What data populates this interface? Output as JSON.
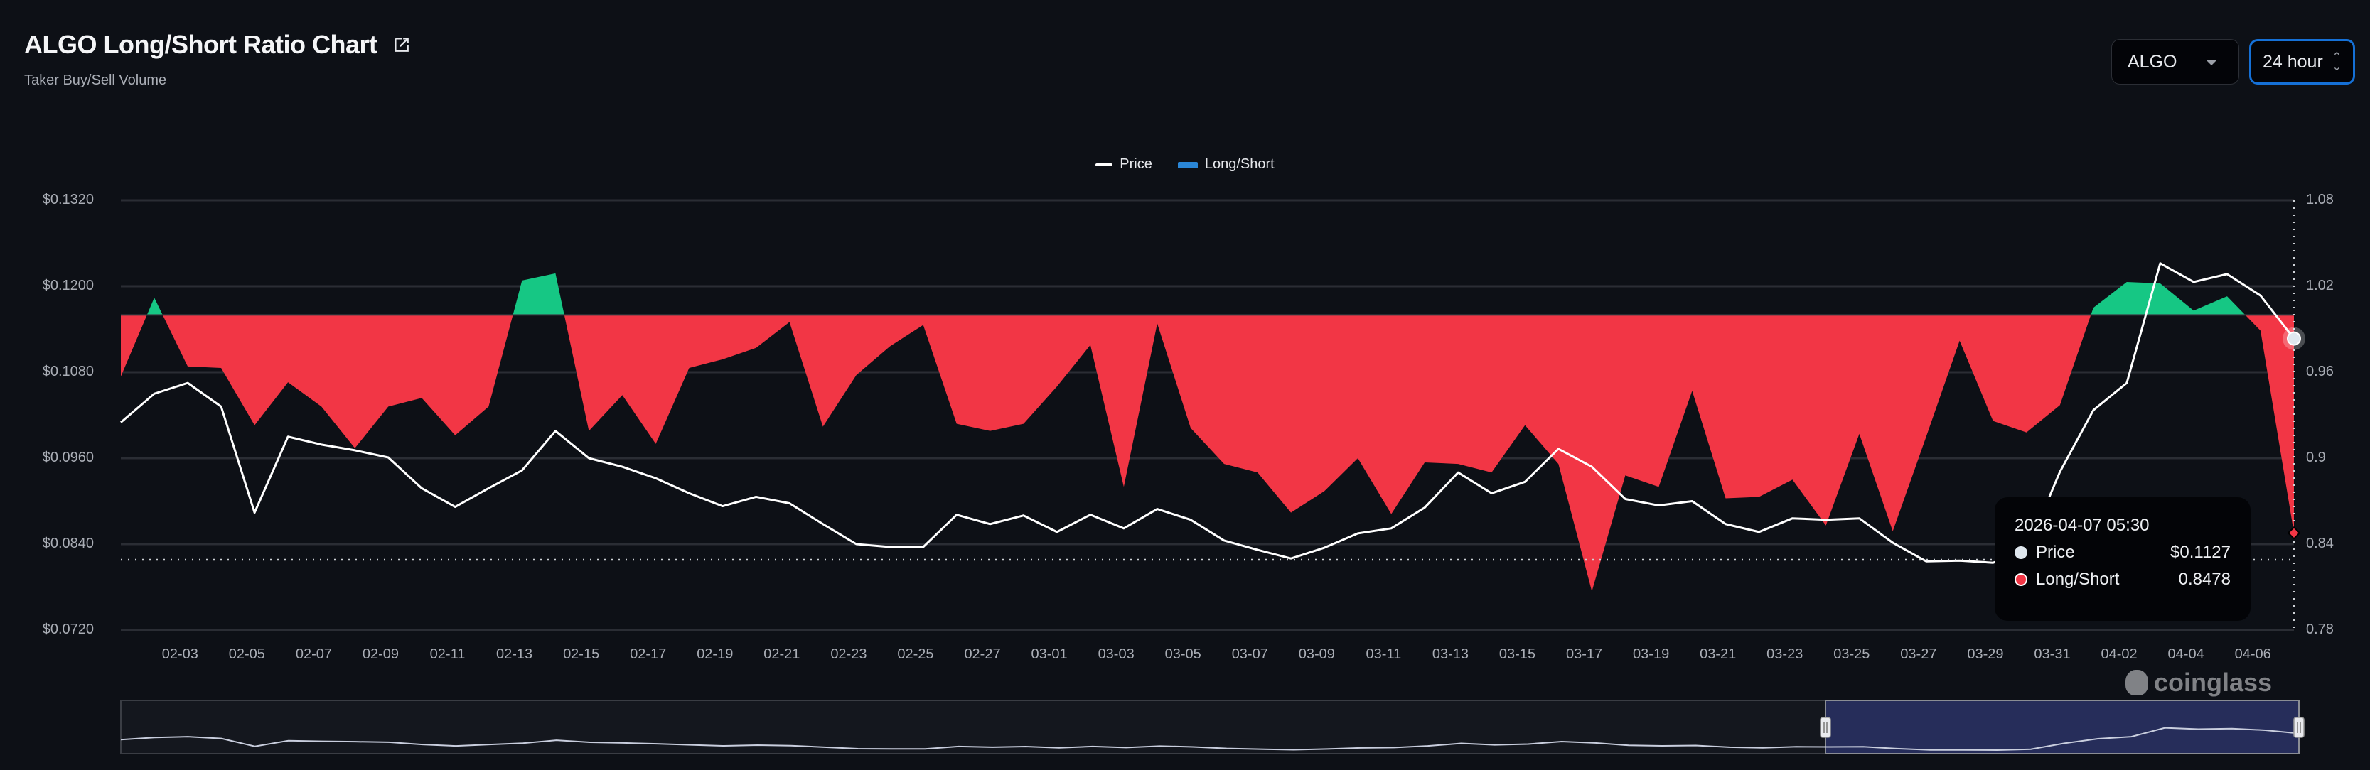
{
  "header": {
    "title": "ALGO Long/Short Ratio Chart",
    "subtitle": "Taker Buy/Sell Volume",
    "coin_select": "ALGO",
    "range_select": "24 hour"
  },
  "legend": {
    "price": "Price",
    "ratio": "Long/Short"
  },
  "tooltip": {
    "time": "2026-04-07 05:30",
    "price_label": "Price",
    "price_value": "$0.1127",
    "ratio_label": "Long/Short",
    "ratio_value": "0.8478"
  },
  "watermark": "coinglass",
  "colors": {
    "long": "#16c784",
    "short": "#f23645",
    "price": "#ffffff",
    "accent": "#1570d6"
  },
  "chart_data": {
    "type": "line+area",
    "title": "ALGO Long/Short Ratio Chart",
    "x": [
      "02-01",
      "02-02",
      "02-03",
      "02-04",
      "02-05",
      "02-06",
      "02-07",
      "02-08",
      "02-09",
      "02-10",
      "02-11",
      "02-12",
      "02-13",
      "02-14",
      "02-15",
      "02-16",
      "02-17",
      "02-18",
      "02-19",
      "02-20",
      "02-21",
      "02-22",
      "02-23",
      "02-24",
      "02-25",
      "02-26",
      "02-27",
      "02-28",
      "03-01",
      "03-02",
      "03-03",
      "03-04",
      "03-05",
      "03-06",
      "03-07",
      "03-08",
      "03-09",
      "03-10",
      "03-11",
      "03-12",
      "03-13",
      "03-14",
      "03-15",
      "03-16",
      "03-17",
      "03-18",
      "03-19",
      "03-20",
      "03-21",
      "03-22",
      "03-23",
      "03-24",
      "03-25",
      "03-26",
      "03-27",
      "03-28",
      "03-29",
      "03-30",
      "03-31",
      "04-01",
      "04-02",
      "04-03",
      "04-04",
      "04-05",
      "04-06",
      "04-07"
    ],
    "x_tick_labels": [
      "02-03",
      "02-05",
      "02-07",
      "02-09",
      "02-11",
      "02-13",
      "02-15",
      "02-17",
      "02-19",
      "02-21",
      "02-23",
      "02-25",
      "02-27",
      "03-01",
      "03-03",
      "03-05",
      "03-07",
      "03-09",
      "03-11",
      "03-13",
      "03-15",
      "03-17",
      "03-19",
      "03-21",
      "03-23",
      "03-25",
      "03-27",
      "03-29",
      "03-31",
      "04-02",
      "04-04",
      "04-06"
    ],
    "series": [
      {
        "name": "Price",
        "axis": "left",
        "values": [
          0.101,
          0.105,
          0.1065,
          0.1032,
          0.0884,
          0.099,
          0.0979,
          0.0971,
          0.0961,
          0.0918,
          0.0892,
          0.0918,
          0.0943,
          0.0998,
          0.096,
          0.0948,
          0.0932,
          0.0911,
          0.0893,
          0.0906,
          0.0897,
          0.0868,
          0.084,
          0.0836,
          0.0836,
          0.0881,
          0.0868,
          0.088,
          0.0857,
          0.0881,
          0.0862,
          0.0889,
          0.0874,
          0.0845,
          0.0832,
          0.082,
          0.0835,
          0.0855,
          0.0862,
          0.0891,
          0.094,
          0.0911,
          0.0927,
          0.0973,
          0.0948,
          0.0903,
          0.0894,
          0.09,
          0.0868,
          0.0857,
          0.0876,
          0.0874,
          0.0876,
          0.0842,
          0.0816,
          0.0817,
          0.0814,
          0.083,
          0.0941,
          0.1027,
          0.1065,
          0.1232,
          0.1206,
          0.1217,
          0.1187,
          0.1127
        ]
      },
      {
        "name": "Long/Short",
        "axis": "right",
        "baseline": 1.0,
        "values": [
          0.957,
          1.012,
          0.964,
          0.963,
          0.923,
          0.953,
          0.936,
          0.907,
          0.936,
          0.942,
          0.916,
          0.936,
          1.024,
          1.029,
          0.919,
          0.944,
          0.91,
          0.963,
          0.969,
          0.977,
          0.995,
          0.922,
          0.958,
          0.978,
          0.993,
          0.924,
          0.919,
          0.924,
          0.95,
          0.979,
          0.88,
          0.994,
          0.921,
          0.896,
          0.89,
          0.862,
          0.877,
          0.9,
          0.861,
          0.897,
          0.896,
          0.89,
          0.923,
          0.896,
          0.807,
          0.888,
          0.88,
          0.947,
          0.872,
          0.873,
          0.885,
          0.853,
          0.917,
          0.849,
          0.915,
          0.982,
          0.926,
          0.918,
          0.937,
          1.005,
          1.023,
          1.022,
          1.003,
          1.013,
          0.989,
          0.8478
        ]
      }
    ],
    "y_left": {
      "ticks": [
        "$0.1320",
        "$0.1200",
        "$0.1080",
        "$0.0960",
        "$0.0840",
        "$0.0720"
      ],
      "range": [
        0.072,
        0.132
      ]
    },
    "y_right": {
      "ticks": [
        "1.08",
        "1.02",
        "0.96",
        "0.9",
        "0.84",
        "0.78"
      ],
      "range": [
        0.78,
        1.08
      ]
    },
    "legend_position": "top-center",
    "grid": true
  }
}
